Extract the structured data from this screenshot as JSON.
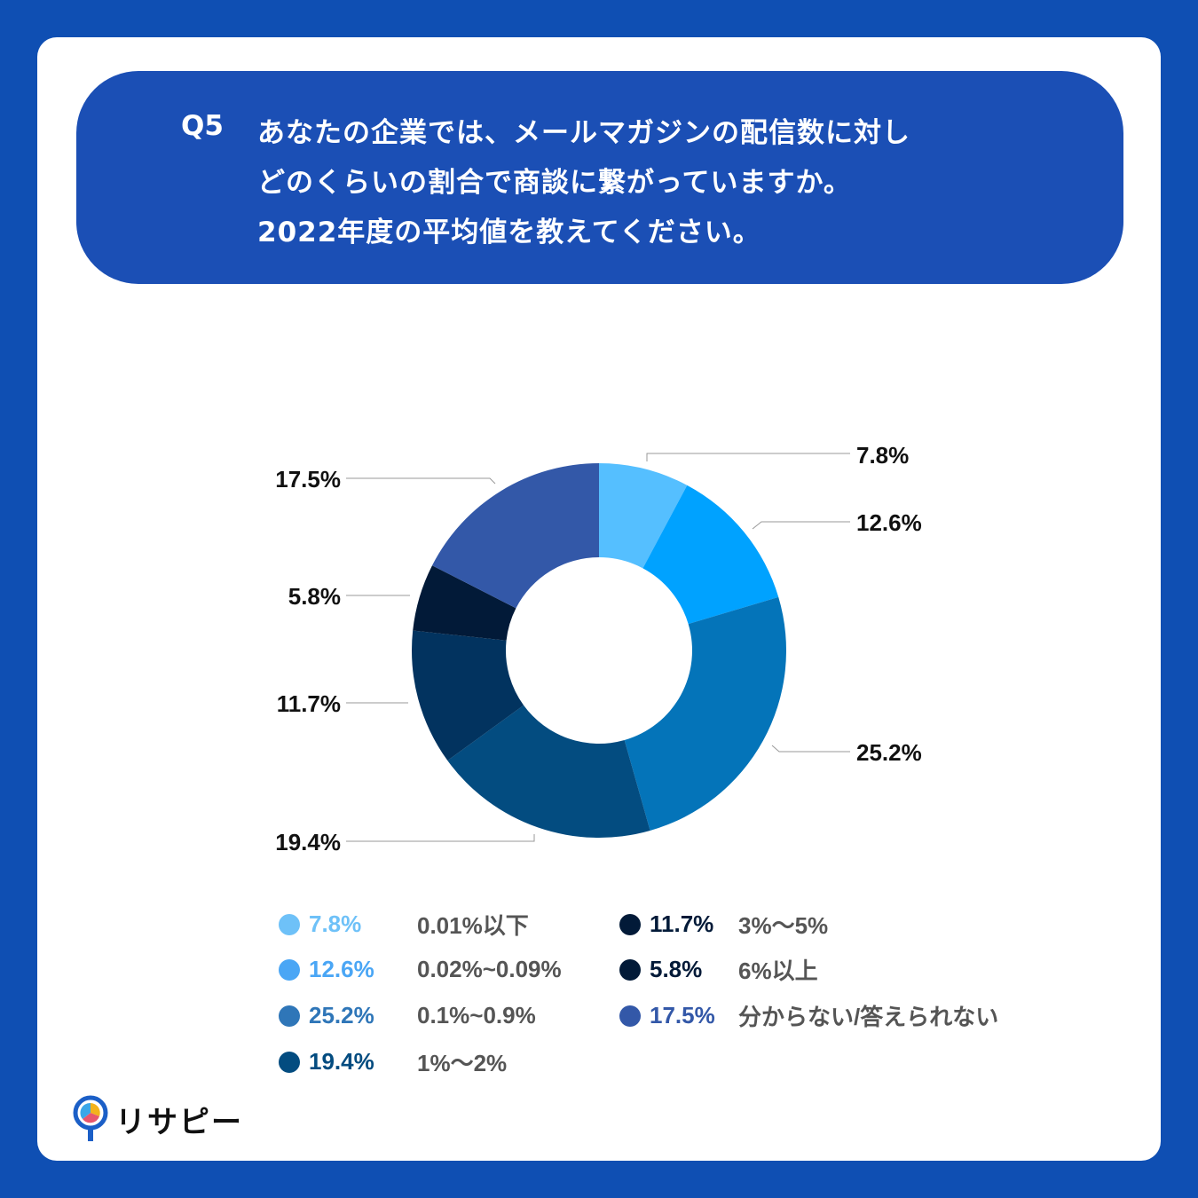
{
  "header": {
    "q_number": "Q5",
    "lines": [
      "あなたの企業では、メールマガジンの配信数に対し",
      "どのくらいの割合で商談に繋がっていますか。",
      "2022年度の平均値を教えてください。"
    ]
  },
  "chart_data": {
    "type": "pie",
    "donut": true,
    "title": "Q5 あなたの企業では、メールマガジンの配信数に対しどのくらいの割合で商談に繋がっていますか。2022年度の平均値を教えてください。",
    "categories": [
      "0.01%以下",
      "0.02%~0.09%",
      "0.1%~0.9%",
      "1%～2%",
      "3%～5%",
      "6%以上",
      "分からない/答えられない"
    ],
    "values": [
      7.8,
      12.6,
      25.2,
      19.4,
      11.7,
      5.8,
      17.5
    ],
    "labels": [
      "7.8%",
      "12.6%",
      "25.2%",
      "19.4%",
      "11.7%",
      "5.8%",
      "17.5%"
    ],
    "colors": [
      "#55bfff",
      "#00a2ff",
      "#0474b9",
      "#034c80",
      "#02335f",
      "#021a38",
      "#3358a8"
    ],
    "legend_colors": [
      "#6ec1f8",
      "#4aa6f5",
      "#2f76b8",
      "#034c80",
      "#021a38",
      "#021a38",
      "#3358a8"
    ],
    "legend_placement": "bottom"
  },
  "logo": {
    "text": "リサピー"
  }
}
